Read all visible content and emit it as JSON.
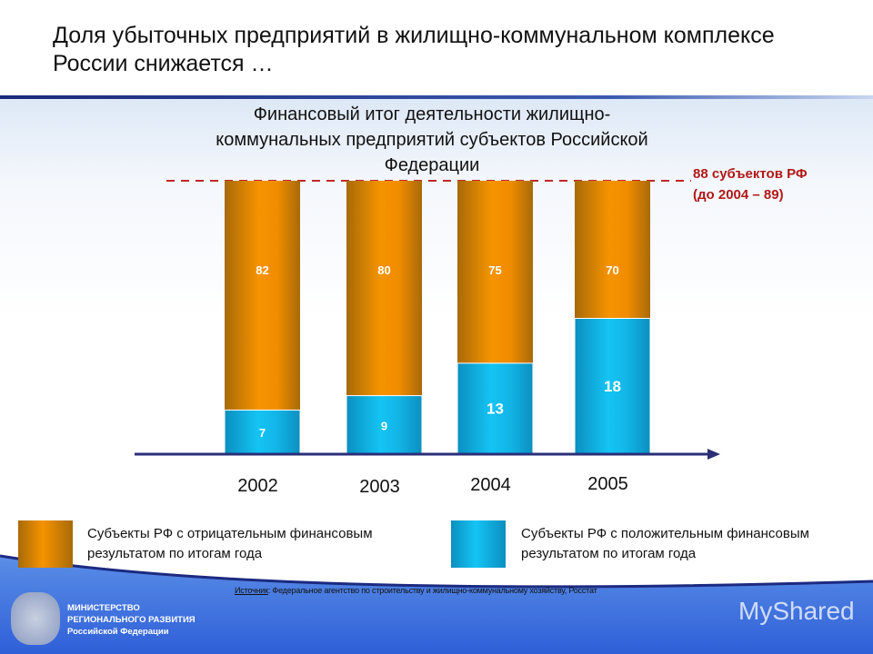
{
  "title": "Доля убыточных предприятий в жилищно-коммунальном комплексе России снижается …",
  "chart_data": {
    "type": "bar",
    "stacked": true,
    "title": "Финансовый итог деятельности жилищно-коммунальных предприятий субъектов Российской Федерации",
    "categories": [
      "2002",
      "2003",
      "2004",
      "2005"
    ],
    "series": [
      {
        "name": "Субъекты РФ с положительным финансовым результатом по итогам года",
        "values": [
          7,
          9,
          13,
          18
        ],
        "color": "#12b4e6"
      },
      {
        "name": "Субъекты РФ с отрицательным финансовым результатом по итогам года",
        "values": [
          82,
          80,
          75,
          70
        ],
        "color": "#f09000"
      }
    ],
    "reference_line": {
      "value": 88,
      "label": "88 субъектов РФ (до 2004 – 89)",
      "color": "#c0282a",
      "style": "dashed"
    },
    "annotation_lines": [
      "88 субъектов РФ",
      "(до 2004 – 89)"
    ],
    "legend_placement": "bottom",
    "grid": false
  },
  "source_label": "Источник",
  "source_text": ": Федеральное агентство по строительству и жилищно-коммунальному хозяйству, Росстат",
  "ministry": [
    "МИНИСТЕРСТВО",
    "РЕГИОНАЛЬНОГО РАЗВИТИЯ",
    "Российской Федерации"
  ],
  "watermark": "MyShared"
}
